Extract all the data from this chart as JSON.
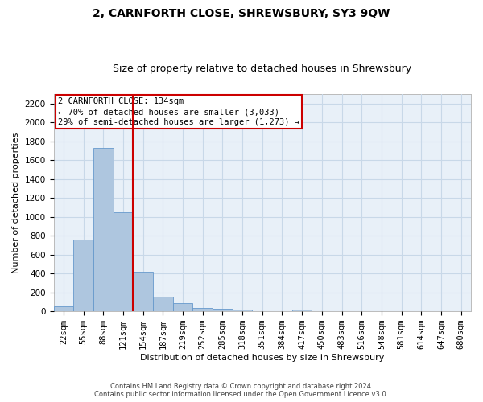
{
  "title": "2, CARNFORTH CLOSE, SHREWSBURY, SY3 9QW",
  "subtitle": "Size of property relative to detached houses in Shrewsbury",
  "xlabel": "Distribution of detached houses by size in Shrewsbury",
  "ylabel": "Number of detached properties",
  "footer_line1": "Contains HM Land Registry data © Crown copyright and database right 2024.",
  "footer_line2": "Contains public sector information licensed under the Open Government Licence v3.0.",
  "bar_labels": [
    "22sqm",
    "55sqm",
    "88sqm",
    "121sqm",
    "154sqm",
    "187sqm",
    "219sqm",
    "252sqm",
    "285sqm",
    "318sqm",
    "351sqm",
    "384sqm",
    "417sqm",
    "450sqm",
    "483sqm",
    "516sqm",
    "548sqm",
    "581sqm",
    "614sqm",
    "647sqm",
    "680sqm"
  ],
  "bar_values": [
    55,
    760,
    1730,
    1050,
    415,
    155,
    85,
    40,
    30,
    18,
    0,
    0,
    15,
    0,
    0,
    0,
    0,
    0,
    0,
    0,
    0
  ],
  "bar_color": "#aec6df",
  "bar_edge_color": "#6699cc",
  "ylim": [
    0,
    2300
  ],
  "yticks": [
    0,
    200,
    400,
    600,
    800,
    1000,
    1200,
    1400,
    1600,
    1800,
    2000,
    2200
  ],
  "vline_color": "#cc0000",
  "annotation_text_line1": "2 CARNFORTH CLOSE: 134sqm",
  "annotation_text_line2": "← 70% of detached houses are smaller (3,033)",
  "annotation_text_line3": "29% of semi-detached houses are larger (1,273) →",
  "annotation_box_facecolor": "#ffffff",
  "annotation_box_edgecolor": "#cc0000",
  "grid_color": "#c8d8e8",
  "background_color": "#e8f0f8",
  "title_fontsize": 10,
  "subtitle_fontsize": 9,
  "axis_label_fontsize": 8,
  "tick_fontsize": 7.5,
  "annotation_fontsize": 7.5,
  "footer_fontsize": 6
}
